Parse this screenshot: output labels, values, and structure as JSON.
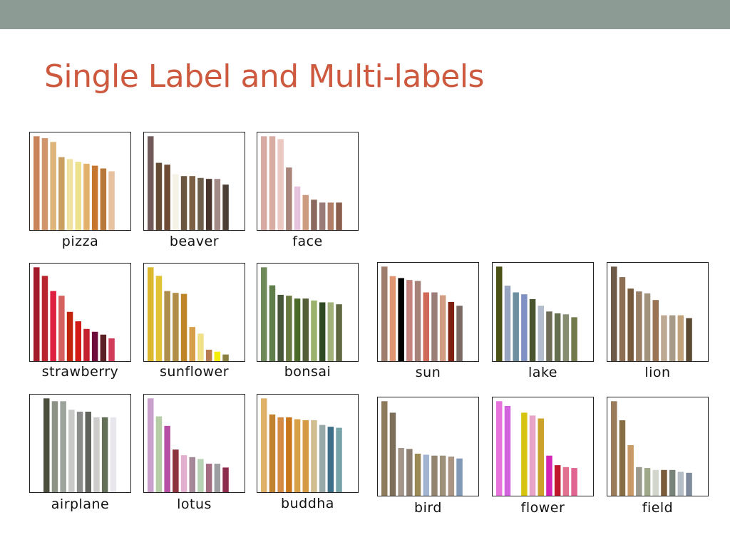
{
  "slide": {
    "title": "Single Label and Multi-labels"
  },
  "chart_data": [
    {
      "type": "bar",
      "label": "pizza",
      "values": [
        0.99,
        0.97,
        0.93,
        0.77,
        0.75,
        0.72,
        0.7,
        0.68,
        0.65,
        0.62
      ],
      "colors": [
        "#c88458",
        "#d0956a",
        "#ddb47a",
        "#c9a060",
        "#f0e3a2",
        "#ece28e",
        "#e2b26c",
        "#c7762f",
        "#b67738",
        "#e6c2a0"
      ]
    },
    {
      "type": "bar",
      "label": "beaver",
      "values": [
        0.99,
        0.71,
        0.69,
        0.59,
        0.57,
        0.57,
        0.55,
        0.54,
        0.54,
        0.48
      ],
      "colors": [
        "#72595a",
        "#654a34",
        "#6f4b36",
        "#f5f2e6",
        "#6c553e",
        "#7c6046",
        "#6e5e4c",
        "#4a352d",
        "#a38a86",
        "#4c3f36"
      ]
    },
    {
      "type": "bar",
      "label": "face",
      "values": [
        0.99,
        0.99,
        0.96,
        0.66,
        0.46,
        0.37,
        0.32,
        0.29,
        0.29,
        0.29
      ],
      "colors": [
        "#d7aaa3",
        "#d8aca2",
        "#ebc9c2",
        "#a98479",
        "#e6c3dc",
        "#cd9c80",
        "#8c695e",
        "#9a7a76",
        "#b07d67",
        "#8a5f4e"
      ]
    },
    {
      "type": "bar",
      "label": "strawberry",
      "values": [
        0.99,
        0.9,
        0.74,
        0.69,
        0.52,
        0.42,
        0.34,
        0.31,
        0.28,
        0.24
      ],
      "colors": [
        "#a31a2a",
        "#b8252f",
        "#df1f40",
        "#d46060",
        "#c2230b",
        "#d41a16",
        "#c4202e",
        "#6d0c3a",
        "#5b1f25",
        "#d13c5a"
      ]
    },
    {
      "type": "bar",
      "label": "sunflower",
      "values": [
        0.99,
        0.9,
        0.74,
        0.72,
        0.71,
        0.36,
        0.29,
        0.12,
        0.1,
        0.07
      ],
      "colors": [
        "#dab72d",
        "#e1c335",
        "#ad8f4b",
        "#b08e48",
        "#c08428",
        "#d69e48",
        "#efe089",
        "#b77b4e",
        "#f4ee08",
        "#8a7f3f"
      ]
    },
    {
      "type": "bar",
      "label": "bonsai",
      "values": [
        0.99,
        0.8,
        0.7,
        0.69,
        0.66,
        0.66,
        0.64,
        0.62,
        0.62,
        0.6
      ],
      "colors": [
        "#6f8a5a",
        "#607d4c",
        "#48573a",
        "#697a40",
        "#4b6a2a",
        "#555f37",
        "#9ab26e",
        "#2f4a22",
        "#a2b07a",
        "#5f6840"
      ]
    },
    {
      "type": "bar",
      "label": "sun",
      "values": [
        0.99,
        0.89,
        0.87,
        0.85,
        0.84,
        0.72,
        0.72,
        0.69,
        0.62,
        0.58
      ],
      "colors": [
        "#9f7d6c",
        "#e09572",
        "#000000",
        "#c5837e",
        "#a6817a",
        "#d06a58",
        "#9b7e78",
        "#d19c82",
        "#7e1f10",
        "#7b6964"
      ]
    },
    {
      "type": "bar",
      "label": "lake",
      "values": [
        0.99,
        0.79,
        0.72,
        0.7,
        0.65,
        0.58,
        0.52,
        0.5,
        0.49,
        0.46
      ],
      "colors": [
        "#4b5014",
        "#99a5c0",
        "#6d8e9e",
        "#7f91c2",
        "#4a5530",
        "#b3bccd",
        "#6e6c57",
        "#656e4f",
        "#858c70",
        "#727a4b"
      ]
    },
    {
      "type": "bar",
      "label": "lion",
      "values": [
        0.99,
        0.88,
        0.76,
        0.73,
        0.71,
        0.64,
        0.48,
        0.48,
        0.48,
        0.45
      ],
      "colors": [
        "#6e5a48",
        "#8c6e55",
        "#785a3c",
        "#9a7f67",
        "#a1937c",
        "#9a7455",
        "#bca893",
        "#a89a88",
        "#c2a27a",
        "#5d4a32"
      ]
    },
    {
      "type": "bar",
      "label": "airplane",
      "values": [
        0.99,
        0.96,
        0.96,
        0.87,
        0.85,
        0.85,
        0.79,
        0.79,
        0.79
      ],
      "colors": [
        "#4b503c",
        "#8d9286",
        "#9da49c",
        "#c9c9c7",
        "#8a8c8a",
        "#5f635c",
        "#cdcccb",
        "#646f58",
        "#e9e6ed"
      ]
    },
    {
      "type": "bar",
      "label": "lotus",
      "values": [
        0.99,
        0.8,
        0.7,
        0.45,
        0.39,
        0.37,
        0.35,
        0.3,
        0.3,
        0.26
      ],
      "colors": [
        "#c9a0cc",
        "#b6cea6",
        "#b64fa3",
        "#8c323c",
        "#e3afce",
        "#a48898",
        "#b8d2b6",
        "#a36a80",
        "#9d9ea1",
        "#8e2c4d"
      ]
    },
    {
      "type": "bar",
      "label": "buddha",
      "values": [
        0.99,
        0.82,
        0.79,
        0.79,
        0.77,
        0.76,
        0.76,
        0.71,
        0.69,
        0.68
      ],
      "colors": [
        "#dfb169",
        "#c0822f",
        "#d38b45",
        "#c9771d",
        "#d8a047",
        "#d59a43",
        "#d0bd90",
        "#98a9a9",
        "#3d7088",
        "#77a4a8"
      ]
    },
    {
      "type": "bar",
      "label": "bird",
      "values": [
        0.99,
        0.87,
        0.5,
        0.49,
        0.44,
        0.43,
        0.42,
        0.42,
        0.41,
        0.39
      ],
      "colors": [
        "#8e7b5c",
        "#7c6e59",
        "#a3958a",
        "#8c7f72",
        "#9b8a55",
        "#a3b4d0",
        "#938470",
        "#9c9079",
        "#a99582",
        "#8199b6"
      ]
    },
    {
      "type": "bar",
      "label": "flower",
      "values": [
        0.99,
        0.94,
        0,
        0.87,
        0.84,
        0.81,
        0.42,
        0.32,
        0.3,
        0.29
      ],
      "colors": [
        "#e873dd",
        "#d265df",
        "#ffffff",
        "#d7c410",
        "#e8a4c7",
        "#cca22d",
        "#d425b4",
        "#c0172c",
        "#e07290",
        "#e06390"
      ]
    },
    {
      "type": "bar",
      "label": "field",
      "values": [
        0.99,
        0.79,
        0.53,
        0.3,
        0.29,
        0.27,
        0.27,
        0.27,
        0.25,
        0.24
      ],
      "colors": [
        "#9a7c5a",
        "#886e45",
        "#c99a66",
        "#9a9b8e",
        "#a0a88a",
        "#d3d6cc",
        "#7a5b3a",
        "#7a837a",
        "#b5bdc6",
        "#7f8a9c"
      ]
    }
  ]
}
